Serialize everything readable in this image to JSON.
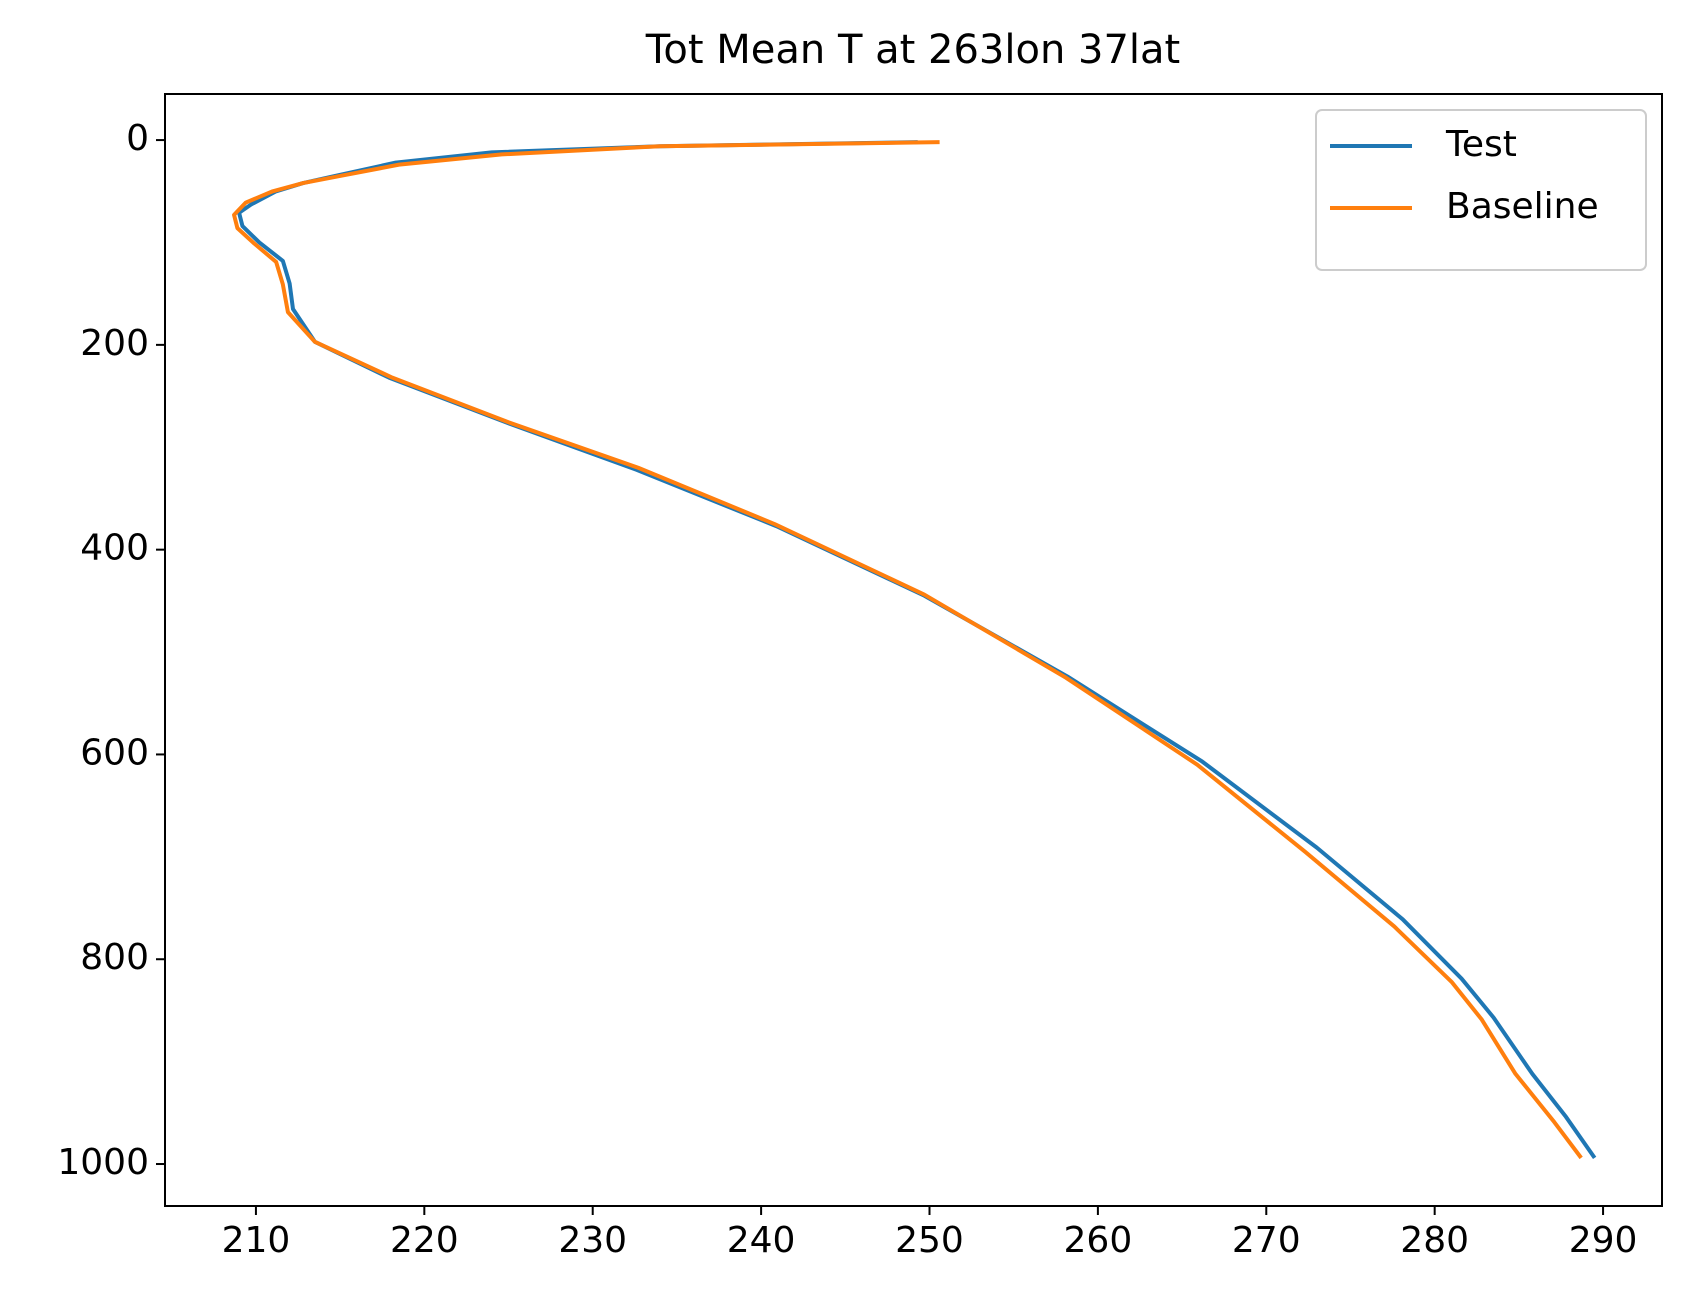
{
  "chart_data": {
    "type": "line",
    "title": "Tot Mean T at 263lon 37lat",
    "xlim": [
      204.6,
      293.5
    ],
    "xticks": [
      210,
      220,
      230,
      240,
      250,
      260,
      270,
      280,
      290
    ],
    "ylim": [
      -45,
      1041
    ],
    "yticks": [
      0,
      200,
      400,
      600,
      800,
      1000
    ],
    "y_inverted": true,
    "legend": "upper right",
    "series": [
      {
        "name": "Test",
        "color": "#1f77b4",
        "x": [
          249.3,
          234.0,
          224.0,
          218.3,
          214.7,
          212.8,
          211.2,
          209.7,
          209.0,
          209.2,
          210.2,
          211.6,
          212.0,
          212.2,
          213.5,
          217.9,
          224.9,
          232.6,
          240.9,
          249.7,
          258.2,
          266.2,
          273.0,
          278.1,
          281.6,
          283.5,
          285.8,
          287.8,
          289.5
        ],
        "y": [
          2,
          6,
          12,
          22,
          35,
          42,
          50,
          63,
          71,
          84,
          100,
          118,
          140,
          165,
          197,
          232,
          276,
          322,
          377,
          445,
          524,
          607,
          691,
          761,
          819,
          857,
          912,
          954,
          994
        ]
      },
      {
        "name": "Baseline",
        "color": "#ff7f0e",
        "x": [
          250.6,
          234.0,
          224.6,
          218.5,
          215.0,
          212.8,
          211.0,
          209.4,
          208.7,
          208.9,
          209.9,
          211.2,
          211.6,
          211.9,
          213.5,
          218.1,
          224.9,
          232.7,
          240.8,
          249.7,
          258.1,
          265.9,
          272.3,
          277.6,
          281.0,
          282.8,
          284.8,
          287.1,
          288.7
        ],
        "y": [
          2,
          6,
          14,
          24,
          35,
          42,
          50,
          61,
          73,
          86,
          101,
          119,
          141,
          168,
          197,
          232,
          275,
          320,
          375,
          444,
          525,
          610,
          695,
          768,
          822,
          859,
          912,
          959,
          994
        ]
      }
    ]
  }
}
